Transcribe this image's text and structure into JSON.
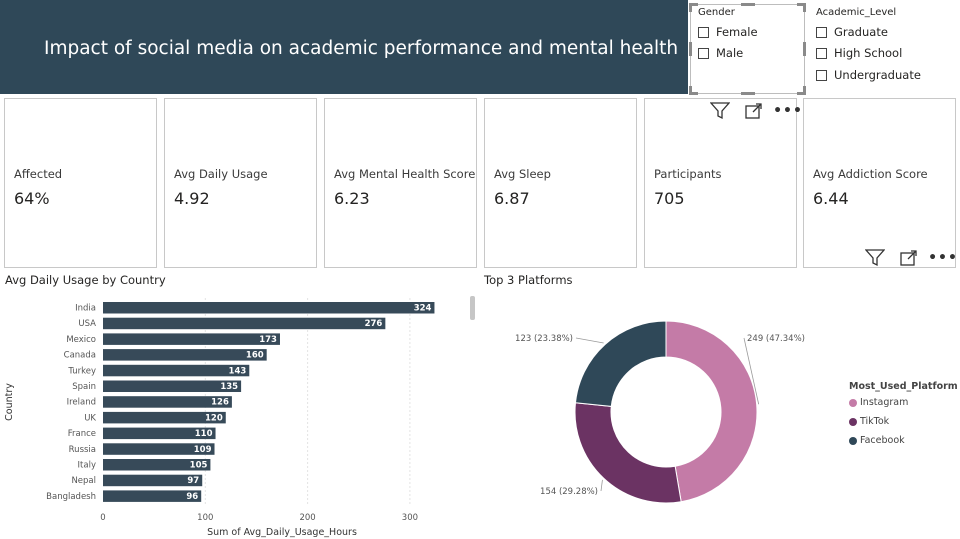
{
  "header": {
    "title": "Impact of social media on academic performance and mental health"
  },
  "slicers": {
    "gender": {
      "title": "Gender",
      "options": [
        "Female",
        "Male"
      ]
    },
    "academic_level": {
      "title": "Academic_Level",
      "options": [
        "Graduate",
        "High School",
        "Undergraduate"
      ]
    }
  },
  "cards": [
    {
      "label": "Affected",
      "value": "64%"
    },
    {
      "label": "Avg Daily Usage",
      "value": "4.92"
    },
    {
      "label": "Avg Mental Health Score",
      "value": "6.23"
    },
    {
      "label": "Avg Sleep",
      "value": "6.87"
    },
    {
      "label": "Participants",
      "value": "705"
    },
    {
      "label": "Avg Addiction Score",
      "value": "6.44"
    }
  ],
  "icons": {
    "filter": "filter-icon",
    "focus": "focus-mode-icon",
    "more": "more-options-icon"
  },
  "colors": {
    "banner": "#2f4858",
    "bar": "#374a59",
    "instagram": "#c47ba7",
    "tiktok": "#6b3363",
    "facebook": "#2f4858"
  },
  "bar_panel": {
    "title": "Avg Daily Usage by Country"
  },
  "donut_panel": {
    "title": "Top 3 Platforms"
  },
  "chart_data": [
    {
      "type": "bar",
      "title": "Avg Daily Usage by Country",
      "xlabel": "Sum of Avg_Daily_Usage_Hours",
      "ylabel": "Country",
      "categories": [
        "India",
        "USA",
        "Mexico",
        "Canada",
        "Turkey",
        "Spain",
        "Ireland",
        "UK",
        "France",
        "Russia",
        "Italy",
        "Nepal",
        "Bangladesh"
      ],
      "values": [
        324,
        276,
        173,
        160,
        143,
        135,
        126,
        120,
        110,
        109,
        105,
        97,
        96
      ],
      "xlim": [
        0,
        350
      ],
      "xticks": [
        0,
        100,
        200,
        300
      ],
      "grid": true
    },
    {
      "type": "pie",
      "title": "Top 3 Platforms",
      "legend_title": "Most_Used_Platform",
      "labels": [
        "Instagram",
        "TikTok",
        "Facebook"
      ],
      "values": [
        249,
        154,
        123
      ],
      "data_labels": [
        "249 (47.34%)",
        "154 (29.28%)",
        "123 (23.38%)"
      ],
      "legend": "right"
    }
  ]
}
